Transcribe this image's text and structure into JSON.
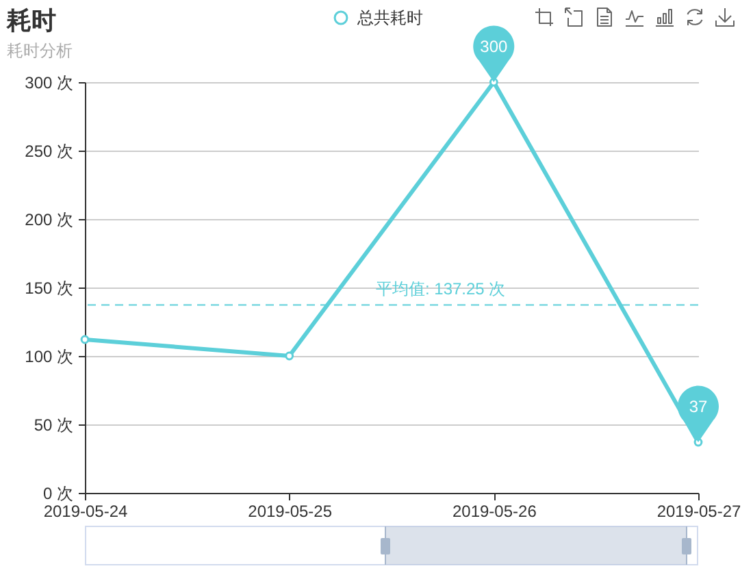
{
  "chart_data": {
    "type": "line",
    "title": "耗时",
    "subtitle": "耗时分析",
    "categories": [
      "2019-05-24",
      "2019-05-25",
      "2019-05-26",
      "2019-05-27"
    ],
    "series": [
      {
        "name": "总共耗时",
        "color": "#5ccfd9",
        "values": [
          112,
          100,
          300,
          37
        ],
        "value_labels": [
          null,
          null,
          "300",
          "37"
        ]
      }
    ],
    "ylim": [
      0,
      300
    ],
    "yticks": [
      {
        "value": 0,
        "label": "0 次"
      },
      {
        "value": 50,
        "label": "50 次"
      },
      {
        "value": 100,
        "label": "100 次"
      },
      {
        "value": 150,
        "label": "150 次"
      },
      {
        "value": 200,
        "label": "200 次"
      },
      {
        "value": 250,
        "label": "250 次"
      },
      {
        "value": 300,
        "label": "300 次"
      }
    ],
    "ref_lines": [
      {
        "axis": "y",
        "value": 137.25,
        "label": "平均值: 137.25 次",
        "color": "#5ccfd9",
        "line_style": "dashed"
      }
    ],
    "grid": "y",
    "legend": "top",
    "marker": "circle",
    "line_style": "solid"
  }
}
